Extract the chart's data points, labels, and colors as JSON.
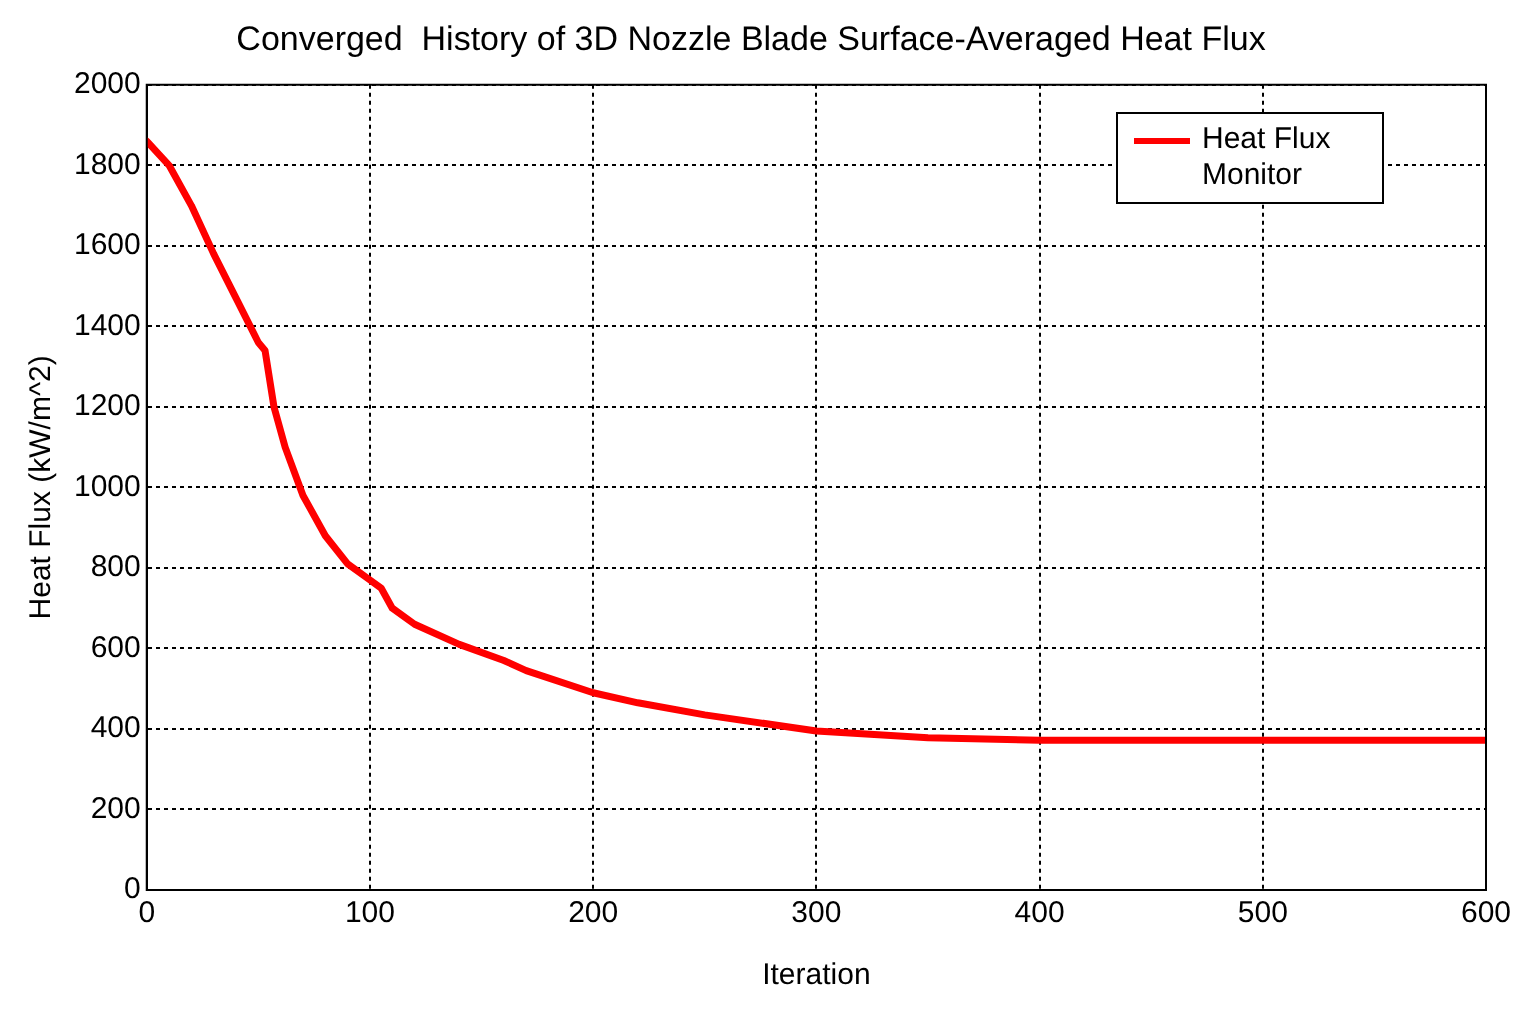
{
  "chart_data": {
    "type": "line",
    "title": "Converged  History of 3D Nozzle Blade Surface-Averaged Heat Flux",
    "xlabel": "Iteration",
    "ylabel": "Heat Flux (kW/m^2)",
    "series": [
      {
        "name": "Heat Flux Monitor",
        "color": "#ff0000",
        "x": [
          0,
          10,
          20,
          30,
          40,
          50,
          53,
          57,
          62,
          70,
          80,
          90,
          100,
          105,
          110,
          120,
          140,
          160,
          170,
          200,
          220,
          250,
          300,
          350,
          400,
          500,
          600
        ],
        "values": [
          1860,
          1800,
          1700,
          1580,
          1470,
          1360,
          1340,
          1200,
          1100,
          980,
          880,
          810,
          770,
          750,
          700,
          660,
          610,
          570,
          545,
          490,
          465,
          435,
          395,
          378,
          372,
          372,
          372
        ]
      }
    ],
    "xlim": [
      0,
      600
    ],
    "xticks": [
      0,
      100,
      200,
      300,
      400,
      500,
      600
    ],
    "ylim": [
      0,
      2000
    ],
    "yticks": [
      0,
      200,
      400,
      600,
      800,
      1000,
      1200,
      1400,
      1600,
      1800,
      2000
    ],
    "grid": true,
    "legend": "top right",
    "marker": "none",
    "line_style": "solid"
  }
}
